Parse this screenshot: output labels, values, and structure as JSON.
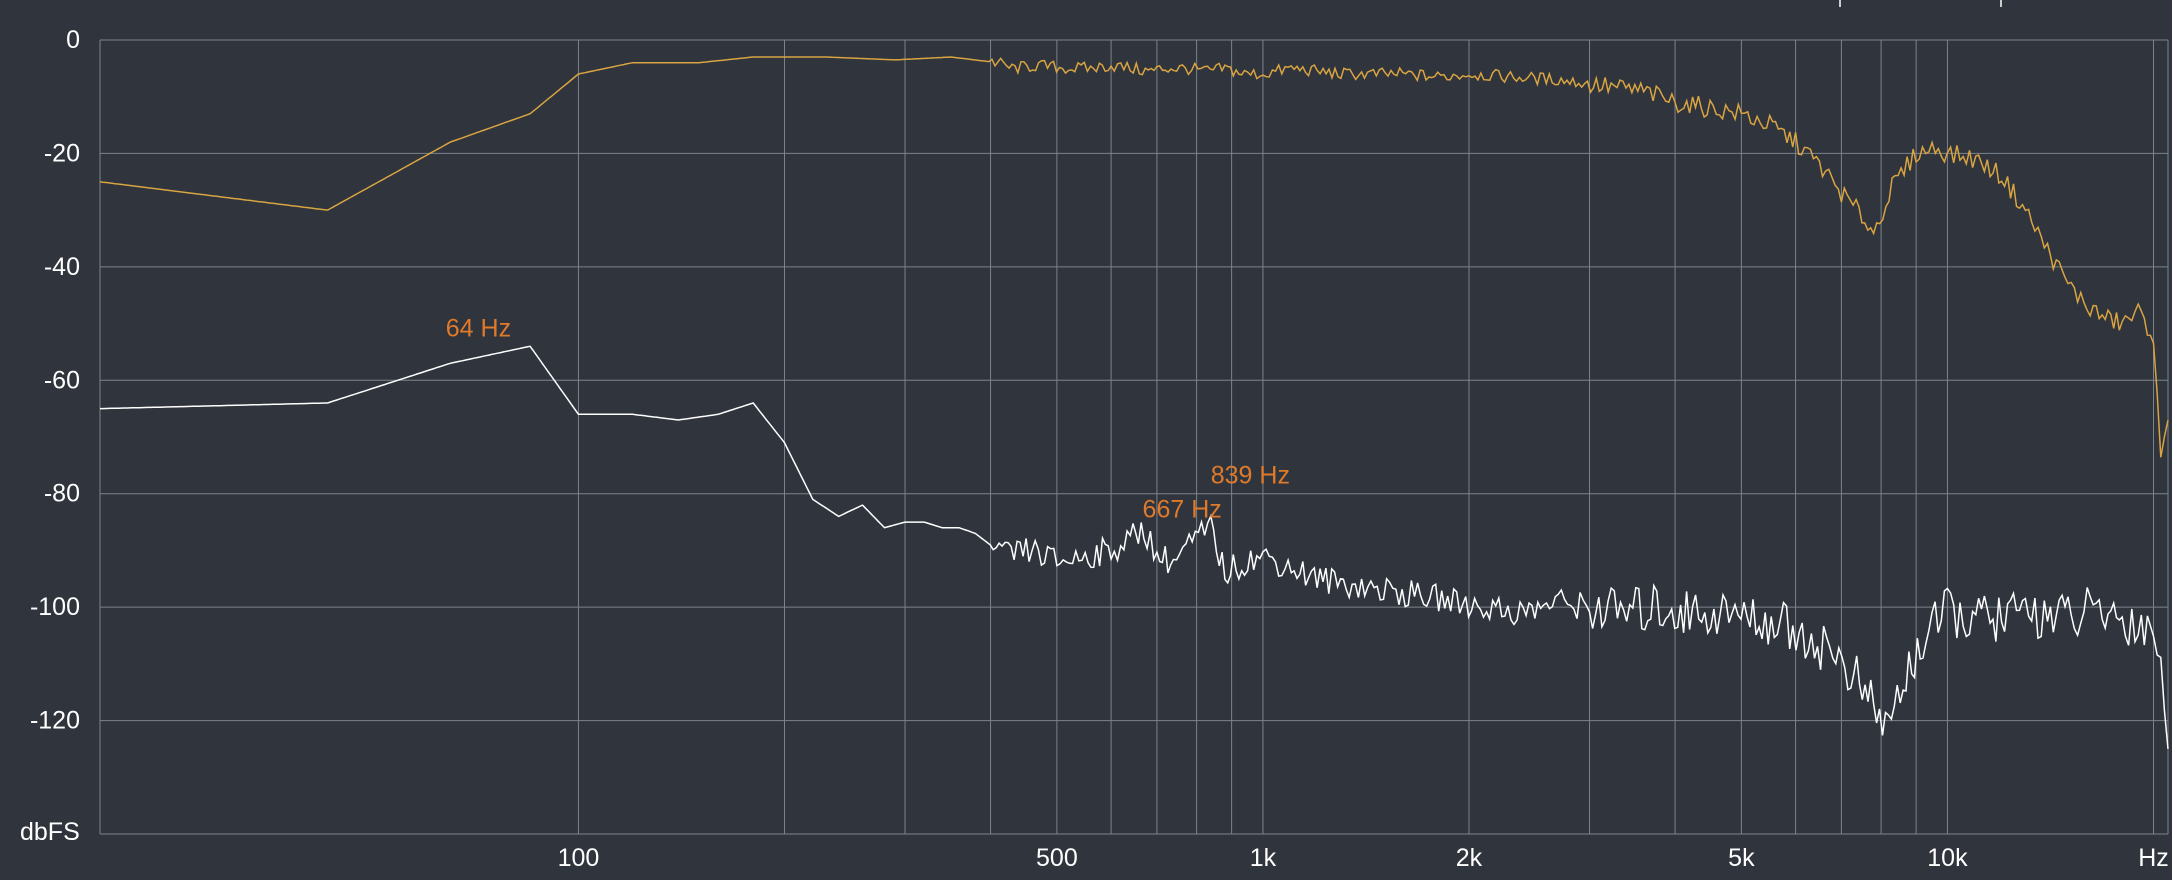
{
  "chart_data": {
    "type": "line",
    "title": "",
    "xlabel": "Hz",
    "ylabel": "dbFS",
    "xscale": "log",
    "xlim": [
      20,
      21000
    ],
    "ylim": [
      -140,
      0
    ],
    "grid": true,
    "x_tick_labels": [
      {
        "value": 100,
        "label": "100"
      },
      {
        "value": 500,
        "label": "500"
      },
      {
        "value": 1000,
        "label": "1k"
      },
      {
        "value": 2000,
        "label": "2k"
      },
      {
        "value": 5000,
        "label": "5k"
      },
      {
        "value": 10000,
        "label": "10k"
      },
      {
        "value": 20000,
        "label": "Hz"
      }
    ],
    "x_grid": [
      100,
      200,
      300,
      400,
      500,
      600,
      700,
      800,
      900,
      1000,
      2000,
      3000,
      4000,
      5000,
      6000,
      7000,
      8000,
      9000,
      10000,
      20000
    ],
    "y_ticks": [
      0,
      -20,
      -40,
      -60,
      -80,
      -100,
      -120
    ],
    "series": [
      {
        "color": "#d9a441",
        "x": [
          20,
          43,
          65,
          85,
          100,
          120,
          150,
          180,
          230,
          290,
          350,
          410,
          430,
          470,
          520,
          560,
          600,
          640,
          680,
          720,
          770,
          830,
          880,
          940,
          1000,
          1100,
          1200,
          1300,
          1450,
          1600,
          1800,
          2000,
          2300,
          2700,
          3100,
          3600,
          4000,
          4500,
          5000,
          5500,
          6000,
          6500,
          7000,
          7500,
          7800,
          8300,
          9000,
          9600,
          10000,
          11000,
          12000,
          13000,
          14000,
          15000,
          16000,
          17000,
          18000,
          19000,
          20000,
          20500,
          21000
        ],
        "y": [
          -25,
          -30,
          -18,
          -13,
          -6,
          -4,
          -4,
          -3,
          -3,
          -3.5,
          -3,
          -4,
          -5,
          -4.5,
          -5,
          -5,
          -4.5,
          -5,
          -5.5,
          -5,
          -5,
          -5.5,
          -5,
          -6,
          -6,
          -5,
          -5.5,
          -6,
          -6,
          -6,
          -6.5,
          -6,
          -6.5,
          -7,
          -8,
          -9,
          -11,
          -12,
          -13,
          -15,
          -18,
          -22,
          -27,
          -31,
          -34,
          -26,
          -20,
          -19,
          -20,
          -21,
          -24,
          -30,
          -37,
          -43,
          -47,
          -49,
          -50,
          -48,
          -52,
          -75,
          -67
        ]
      },
      {
        "color": "#ffffff",
        "x": [
          20,
          43,
          65,
          85,
          100,
          120,
          140,
          160,
          180,
          200,
          220,
          240,
          260,
          280,
          300,
          320,
          340,
          360,
          380,
          420,
          460,
          500,
          550,
          600,
          640,
          670,
          700,
          740,
          780,
          839,
          880,
          940,
          1000,
          1100,
          1200,
          1350,
          1500,
          1700,
          1900,
          2100,
          2400,
          2700,
          3000,
          3400,
          3800,
          4200,
          4700,
          5200,
          5700,
          6200,
          6800,
          7300,
          7800,
          8200,
          8700,
          9300,
          10000,
          11000,
          12000,
          13000,
          14000,
          15000,
          16000,
          17000,
          18000,
          19000,
          20000,
          20500,
          21000
        ],
        "y": [
          -65,
          -64,
          -57,
          -54,
          -66,
          -66,
          -67,
          -66,
          -64,
          -71,
          -81,
          -84,
          -82,
          -86,
          -85,
          -85,
          -86,
          -86,
          -87,
          -91,
          -90,
          -92,
          -91,
          -90,
          -88,
          -86,
          -91,
          -92,
          -89,
          -86,
          -94,
          -92,
          -91,
          -93,
          -95,
          -96,
          -97,
          -98,
          -99,
          -100,
          -101,
          -99,
          -100,
          -101,
          -100,
          -101,
          -101,
          -102,
          -103,
          -105,
          -108,
          -112,
          -118,
          -121,
          -112,
          -105,
          -101,
          -102,
          -102,
          -101,
          -101,
          -102,
          -101,
          -101,
          -102,
          -103,
          -104,
          -108,
          -125
        ]
      }
    ],
    "annotations": [
      {
        "label": "64 Hz",
        "x": 64,
        "y": -54
      },
      {
        "label": "667 Hz",
        "x": 667,
        "y": -86
      },
      {
        "label": "839 Hz",
        "x": 839,
        "y": -80
      }
    ]
  }
}
